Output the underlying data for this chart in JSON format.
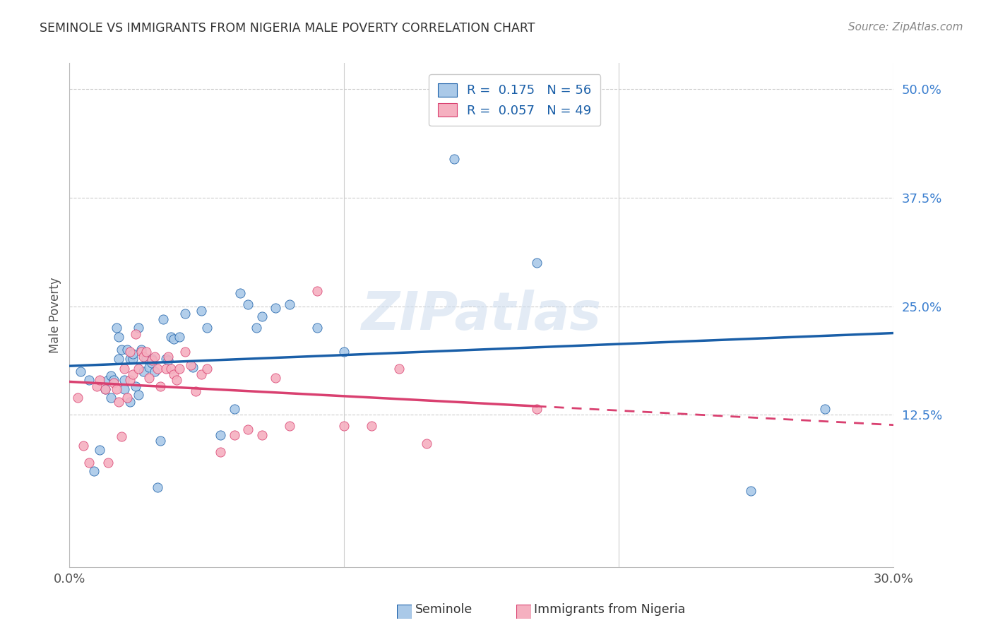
{
  "title": "SEMINOLE VS IMMIGRANTS FROM NIGERIA MALE POVERTY CORRELATION CHART",
  "source": "Source: ZipAtlas.com",
  "ylabel": "Male Poverty",
  "xlim": [
    0.0,
    0.3
  ],
  "ylim": [
    -0.05,
    0.53
  ],
  "yticks": [
    0.125,
    0.25,
    0.375,
    0.5
  ],
  "ytick_labels": [
    "12.5%",
    "25.0%",
    "37.5%",
    "50.0%"
  ],
  "xtick_vals": [
    0.0,
    0.1,
    0.2,
    0.3
  ],
  "xtick_labels_show": [
    "0.0%",
    "",
    "",
    "30.0%"
  ],
  "legend1_R": "0.175",
  "legend1_N": "56",
  "legend2_R": "0.057",
  "legend2_N": "49",
  "seminole_color": "#aac9e8",
  "nigeria_color": "#f5b0c0",
  "line_blue": "#1a5fa8",
  "line_pink": "#d94070",
  "watermark": "ZIPatlas",
  "seminole_x": [
    0.004,
    0.007,
    0.009,
    0.011,
    0.013,
    0.014,
    0.015,
    0.015,
    0.016,
    0.017,
    0.018,
    0.018,
    0.019,
    0.02,
    0.02,
    0.021,
    0.022,
    0.022,
    0.023,
    0.023,
    0.024,
    0.025,
    0.025,
    0.026,
    0.027,
    0.028,
    0.029,
    0.03,
    0.03,
    0.031,
    0.032,
    0.033,
    0.034,
    0.035,
    0.036,
    0.037,
    0.038,
    0.04,
    0.042,
    0.045,
    0.048,
    0.05,
    0.055,
    0.06,
    0.062,
    0.065,
    0.068,
    0.07,
    0.075,
    0.08,
    0.09,
    0.1,
    0.14,
    0.17,
    0.248,
    0.275
  ],
  "seminole_y": [
    0.175,
    0.165,
    0.06,
    0.085,
    0.155,
    0.165,
    0.145,
    0.17,
    0.165,
    0.225,
    0.19,
    0.215,
    0.2,
    0.155,
    0.165,
    0.2,
    0.19,
    0.14,
    0.19,
    0.195,
    0.158,
    0.225,
    0.148,
    0.2,
    0.175,
    0.19,
    0.18,
    0.185,
    0.19,
    0.175,
    0.042,
    0.095,
    0.235,
    0.19,
    0.188,
    0.215,
    0.212,
    0.215,
    0.242,
    0.18,
    0.245,
    0.225,
    0.102,
    0.132,
    0.265,
    0.252,
    0.225,
    0.238,
    0.248,
    0.252,
    0.225,
    0.198,
    0.42,
    0.3,
    0.038,
    0.132
  ],
  "nigeria_x": [
    0.003,
    0.005,
    0.007,
    0.01,
    0.011,
    0.013,
    0.014,
    0.016,
    0.017,
    0.018,
    0.019,
    0.02,
    0.021,
    0.022,
    0.022,
    0.023,
    0.024,
    0.025,
    0.026,
    0.027,
    0.028,
    0.029,
    0.03,
    0.031,
    0.032,
    0.033,
    0.035,
    0.036,
    0.037,
    0.038,
    0.039,
    0.04,
    0.042,
    0.044,
    0.046,
    0.048,
    0.05,
    0.055,
    0.06,
    0.065,
    0.07,
    0.075,
    0.08,
    0.09,
    0.1,
    0.11,
    0.12,
    0.13,
    0.17
  ],
  "nigeria_y": [
    0.145,
    0.09,
    0.07,
    0.158,
    0.165,
    0.155,
    0.07,
    0.162,
    0.155,
    0.14,
    0.1,
    0.178,
    0.145,
    0.165,
    0.198,
    0.172,
    0.218,
    0.178,
    0.198,
    0.192,
    0.198,
    0.168,
    0.188,
    0.192,
    0.178,
    0.158,
    0.178,
    0.192,
    0.178,
    0.172,
    0.165,
    0.178,
    0.198,
    0.182,
    0.152,
    0.172,
    0.178,
    0.082,
    0.102,
    0.108,
    0.102,
    0.168,
    0.112,
    0.268,
    0.112,
    0.112,
    0.178,
    0.092,
    0.132
  ]
}
